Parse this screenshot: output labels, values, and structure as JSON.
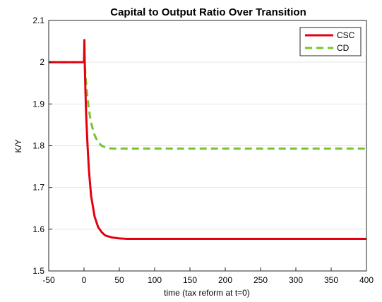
{
  "chart_data": {
    "type": "line",
    "title": "Capital to Output Ratio Over Transition",
    "xlabel": "time (tax reform at t=0)",
    "ylabel": "K/Y",
    "xlim": [
      -50,
      400
    ],
    "ylim": [
      1.5,
      2.1
    ],
    "xticks": [
      "-50",
      "0",
      "50",
      "100",
      "150",
      "200",
      "250",
      "300",
      "350",
      "400"
    ],
    "yticks": [
      "1.5",
      "1.6",
      "1.7",
      "1.8",
      "1.9",
      "2",
      "2.1"
    ],
    "grid": "y-major",
    "legend_position": "top-right",
    "series": [
      {
        "name": "CSC",
        "color": "#e3000f",
        "style": "solid",
        "x": [
          -50,
          0,
          0.5,
          1,
          2,
          3,
          5,
          7,
          10,
          15,
          20,
          25,
          30,
          40,
          50,
          60,
          80,
          100,
          150,
          200,
          250,
          300,
          350,
          400
        ],
        "y": [
          2.0,
          2.0,
          2.053,
          2.0,
          1.93,
          1.875,
          1.8,
          1.74,
          1.68,
          1.63,
          1.605,
          1.593,
          1.585,
          1.58,
          1.578,
          1.577,
          1.577,
          1.577,
          1.577,
          1.577,
          1.577,
          1.577,
          1.577,
          1.577
        ]
      },
      {
        "name": "CD",
        "color": "#77c431",
        "style": "dashed",
        "x": [
          -50,
          0,
          0.5,
          1,
          2,
          4,
          6,
          8,
          10,
          15,
          20,
          25,
          30,
          35,
          40,
          50,
          60,
          100,
          150,
          200,
          250,
          300,
          350,
          400
        ],
        "y": [
          2.0,
          2.0,
          2.02,
          2.0,
          1.97,
          1.93,
          1.9,
          1.875,
          1.855,
          1.825,
          1.808,
          1.8,
          1.796,
          1.794,
          1.793,
          1.793,
          1.793,
          1.793,
          1.793,
          1.793,
          1.793,
          1.793,
          1.793,
          1.793
        ]
      }
    ]
  }
}
